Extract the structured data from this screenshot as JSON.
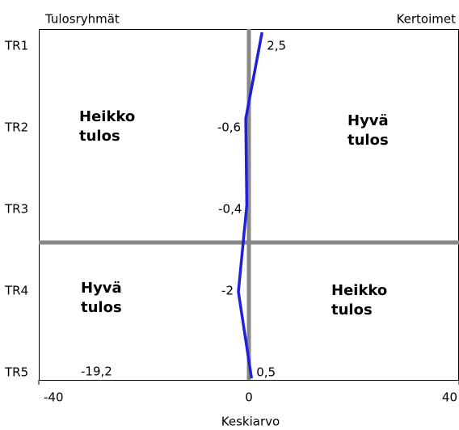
{
  "chart_data": {
    "type": "line",
    "title_left": "Tulosryhmät",
    "title_right": "Kertoimet",
    "x_label": "Keskiarvo",
    "categories": [
      "TR1",
      "TR2",
      "TR3",
      "TR4",
      "TR5"
    ],
    "series": [
      {
        "name": "Kertoimet",
        "color": "#1f1fdd",
        "values": [
          2.5,
          -0.6,
          -0.4,
          -2,
          0.5
        ],
        "value_labels": [
          "2,5",
          "-0,6",
          "-0,4",
          "-2",
          "0,5"
        ]
      }
    ],
    "xlim": [
      -40,
      40
    ],
    "xticks": [
      -40,
      0,
      40
    ],
    "annotations": [
      {
        "lines": [
          "Heikko",
          "tulos"
        ]
      },
      {
        "lines": [
          "Hyvä",
          "tulos"
        ]
      },
      {
        "lines": [
          "Hyvä",
          "tulos"
        ]
      },
      {
        "lines": [
          "Heikko",
          "tulos"
        ]
      },
      {
        "lines": [
          "-19,2"
        ]
      }
    ]
  }
}
